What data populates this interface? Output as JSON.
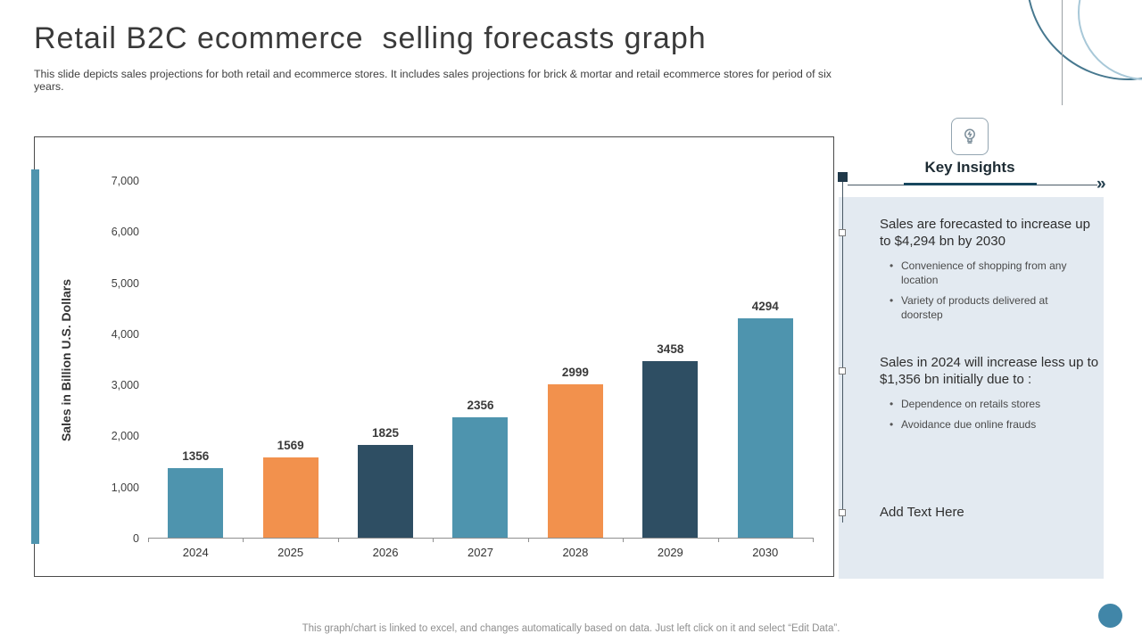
{
  "slide": {
    "title": "Retail B2C ecommerce  selling forecasts graph",
    "subtitle": "This slide depicts sales projections for both retail and ecommerce stores. It includes sales projections for brick & mortar and retail ecommerce stores for period of six years.",
    "footer": "This graph/chart is linked to excel,  and changes automatically based on data. Just left click on it and select “Edit Data”."
  },
  "chart_data": {
    "type": "bar",
    "title": "",
    "categories": [
      "2024",
      "2025",
      "2026",
      "2027",
      "2028",
      "2029",
      "2030"
    ],
    "values": [
      1356,
      1569,
      1825,
      2356,
      2999,
      3458,
      4294
    ],
    "bar_colors": [
      "#4e94ae",
      "#f2914d",
      "#2e4e63",
      "#4e94ae",
      "#f2914d",
      "#2e4e63",
      "#4e94ae"
    ],
    "xlabel": "",
    "ylabel": "Sales in Billion U.S. Dollars",
    "ylim": [
      0,
      7000
    ],
    "yticks": [
      0,
      1000,
      2000,
      3000,
      4000,
      5000,
      6000,
      7000
    ],
    "grid": false,
    "legend": "none"
  },
  "insights": {
    "heading": "Key Insights",
    "arrow_glyph": "»",
    "items": [
      {
        "title": "Sales are forecasted to increase up to $4,294 bn by 2030",
        "bullets": [
          "Convenience  of shopping from any location",
          "Variety of products delivered  at doorstep"
        ]
      },
      {
        "title": "Sales in 2024 will increase less up to $1,356 bn initially due to :",
        "bullets": [
          "Dependence  on retails stores",
          "Avoidance  due online frauds"
        ]
      },
      {
        "title": "Add Text Here",
        "bullets": []
      }
    ]
  },
  "icons": {
    "key_insights_icon": "lightbulb-icon"
  },
  "colors": {
    "teal": "#4e94ae",
    "orange": "#f2914d",
    "navy": "#2e4e63",
    "panel_bg": "#e3eaf1",
    "underline": "#17475e",
    "deco_dot": "#4186a8"
  }
}
